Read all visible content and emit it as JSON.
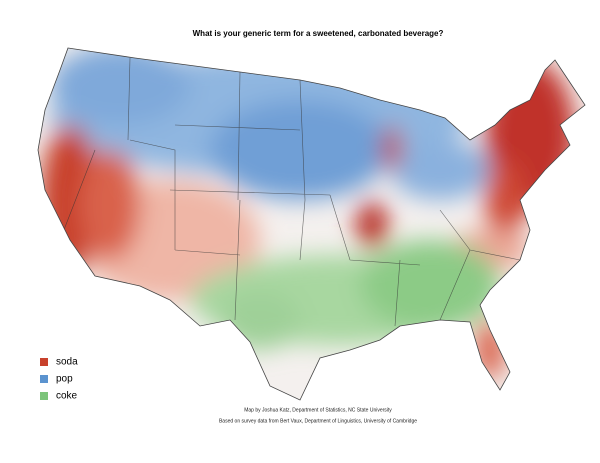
{
  "title": "What is your generic term for a sweetened, carbonated beverage?",
  "legend": {
    "items": [
      {
        "label": "soda",
        "color": "#c8412c"
      },
      {
        "label": "pop",
        "color": "#5b93cf"
      },
      {
        "label": "coke",
        "color": "#7cc47a"
      }
    ]
  },
  "credits": [
    "Map by Joshua Katz, Department of Statistics, NC State University",
    "Based on survey data from Bert Vaux, Department of Linguistics, University of Cambridge"
  ]
}
